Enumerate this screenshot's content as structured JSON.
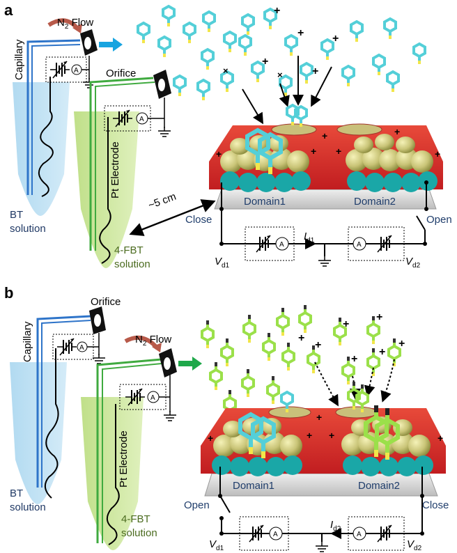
{
  "panel_a": {
    "letter": "a",
    "gas_label": "N",
    "gas_sub": "2",
    "gas_suffix": " Flow",
    "capillary": "Capillary",
    "orifice": "Orifice",
    "electrode": "Pt Electrode",
    "distance": "~5 cm",
    "bt_solution_1": "BT",
    "bt_solution_2": "solution",
    "fbt_solution_1": "4-FBT",
    "fbt_solution_2": "solution",
    "domain1": "Domain1",
    "domain2": "Domain2",
    "left_switch": "Close",
    "right_switch": "Open",
    "current_label": "I",
    "current_sub": "d1",
    "v1": "V",
    "v1_sub": "d1",
    "v2": "V",
    "v2_sub": "d2",
    "ammeter": "A"
  },
  "panel_b": {
    "letter": "b",
    "gas_label": "N",
    "gas_sub": "2",
    "gas_suffix": " Flow",
    "capillary": "Capillary",
    "orifice": "Orifice",
    "electrode": "Pt Electrode",
    "bt_solution_1": "BT",
    "bt_solution_2": "solution",
    "fbt_solution_1": "4-FBT",
    "fbt_solution_2": "solution",
    "domain1": "Domain1",
    "domain2": "Domain2",
    "left_switch": "Open",
    "right_switch": "Close",
    "current_label": "I",
    "current_sub": "d2",
    "v1": "V",
    "v1_sub": "d1",
    "v2": "V",
    "v2_sub": "d2",
    "ammeter": "A"
  },
  "colors": {
    "bt_color": "#54cfd8",
    "fbt_color": "#9be04a",
    "sulfur": "#f2e64a",
    "substrate_red": "#d8262a",
    "teal": "#1aa7a7",
    "capillary_blue": "#2e74c9",
    "capillary_green": "#3faa3f"
  }
}
